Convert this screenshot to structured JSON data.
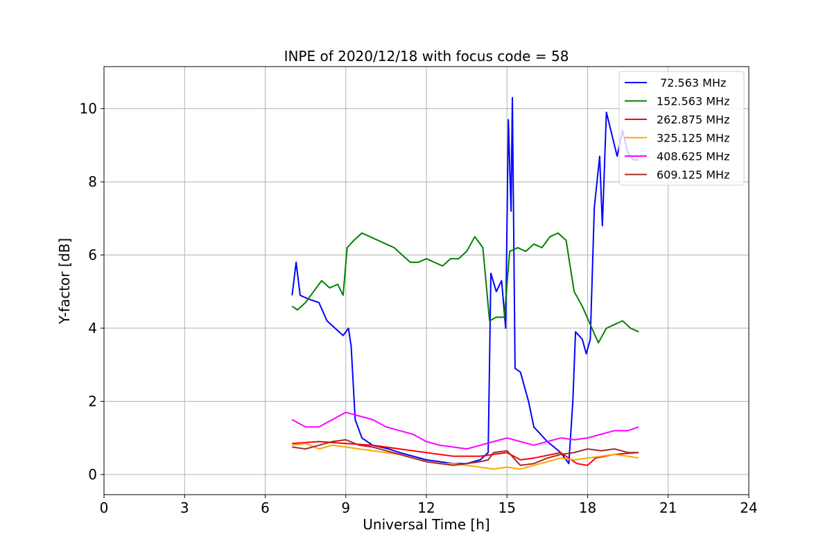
{
  "chart_data": {
    "type": "line",
    "title": "INPE of 2020/12/18 with focus code = 58",
    "xlabel": "Universal Time [h]",
    "ylabel": "Y-factor [dB]",
    "xlim": [
      0,
      24
    ],
    "ylim": [
      -0.55,
      11.15
    ],
    "xticks": [
      0,
      3,
      6,
      9,
      12,
      15,
      18,
      21,
      24
    ],
    "yticks": [
      0,
      2,
      4,
      6,
      8,
      10
    ],
    "grid": true,
    "legend_position": "top-right",
    "series": [
      {
        "name": " 72.563 MHz",
        "color": "#0000ff",
        "points": [
          [
            7.0,
            4.9
          ],
          [
            7.15,
            5.8
          ],
          [
            7.3,
            4.9
          ],
          [
            7.6,
            4.8
          ],
          [
            8.0,
            4.7
          ],
          [
            8.3,
            4.2
          ],
          [
            8.6,
            4.0
          ],
          [
            8.9,
            3.8
          ],
          [
            9.1,
            4.0
          ],
          [
            9.2,
            3.5
          ],
          [
            9.35,
            1.5
          ],
          [
            9.6,
            1.0
          ],
          [
            10.0,
            0.8
          ],
          [
            10.6,
            0.7
          ],
          [
            11.0,
            0.6
          ],
          [
            11.5,
            0.5
          ],
          [
            12.0,
            0.4
          ],
          [
            12.5,
            0.35
          ],
          [
            13.0,
            0.3
          ],
          [
            13.5,
            0.3
          ],
          [
            14.0,
            0.4
          ],
          [
            14.3,
            0.6
          ],
          [
            14.4,
            5.5
          ],
          [
            14.6,
            5.0
          ],
          [
            14.8,
            5.3
          ],
          [
            14.95,
            4.0
          ],
          [
            15.05,
            9.7
          ],
          [
            15.15,
            7.2
          ],
          [
            15.2,
            10.3
          ],
          [
            15.3,
            2.9
          ],
          [
            15.5,
            2.8
          ],
          [
            15.8,
            2.0
          ],
          [
            16.0,
            1.3
          ],
          [
            16.5,
            0.9
          ],
          [
            17.0,
            0.6
          ],
          [
            17.3,
            0.3
          ],
          [
            17.45,
            2.0
          ],
          [
            17.55,
            3.9
          ],
          [
            17.8,
            3.7
          ],
          [
            17.95,
            3.3
          ],
          [
            18.1,
            3.7
          ],
          [
            18.25,
            7.3
          ],
          [
            18.45,
            8.7
          ],
          [
            18.55,
            6.8
          ],
          [
            18.7,
            9.9
          ],
          [
            18.9,
            9.3
          ],
          [
            19.1,
            8.7
          ],
          [
            19.3,
            9.4
          ],
          [
            19.5,
            8.8
          ],
          [
            19.7,
            8.6
          ],
          [
            19.9,
            8.6
          ]
        ]
      },
      {
        "name": "152.563 MHz",
        "color": "#008000",
        "points": [
          [
            7.0,
            4.6
          ],
          [
            7.2,
            4.5
          ],
          [
            7.5,
            4.7
          ],
          [
            7.8,
            5.0
          ],
          [
            8.1,
            5.3
          ],
          [
            8.4,
            5.1
          ],
          [
            8.7,
            5.2
          ],
          [
            8.9,
            4.9
          ],
          [
            9.05,
            6.2
          ],
          [
            9.3,
            6.4
          ],
          [
            9.6,
            6.6
          ],
          [
            9.9,
            6.5
          ],
          [
            10.2,
            6.4
          ],
          [
            10.5,
            6.3
          ],
          [
            10.8,
            6.2
          ],
          [
            11.1,
            6.0
          ],
          [
            11.4,
            5.8
          ],
          [
            11.7,
            5.8
          ],
          [
            12.0,
            5.9
          ],
          [
            12.3,
            5.8
          ],
          [
            12.6,
            5.7
          ],
          [
            12.9,
            5.9
          ],
          [
            13.2,
            5.9
          ],
          [
            13.5,
            6.1
          ],
          [
            13.8,
            6.5
          ],
          [
            14.1,
            6.2
          ],
          [
            14.35,
            4.2
          ],
          [
            14.6,
            4.3
          ],
          [
            14.9,
            4.3
          ],
          [
            15.1,
            6.1
          ],
          [
            15.4,
            6.2
          ],
          [
            15.7,
            6.1
          ],
          [
            16.0,
            6.3
          ],
          [
            16.3,
            6.2
          ],
          [
            16.6,
            6.5
          ],
          [
            16.9,
            6.6
          ],
          [
            17.2,
            6.4
          ],
          [
            17.5,
            5.0
          ],
          [
            17.8,
            4.6
          ],
          [
            18.1,
            4.1
          ],
          [
            18.4,
            3.6
          ],
          [
            18.7,
            4.0
          ],
          [
            19.0,
            4.1
          ],
          [
            19.3,
            4.2
          ],
          [
            19.6,
            4.0
          ],
          [
            19.9,
            3.9
          ]
        ]
      },
      {
        "name": "262.875 MHz",
        "color": "#ff0000",
        "points": [
          [
            7.0,
            0.85
          ],
          [
            8.0,
            0.9
          ],
          [
            9.0,
            0.85
          ],
          [
            10.0,
            0.8
          ],
          [
            11.0,
            0.7
          ],
          [
            12.0,
            0.6
          ],
          [
            13.0,
            0.5
          ],
          [
            14.0,
            0.5
          ],
          [
            15.0,
            0.6
          ],
          [
            15.5,
            0.4
          ],
          [
            16.0,
            0.45
          ],
          [
            17.0,
            0.6
          ],
          [
            17.6,
            0.3
          ],
          [
            18.0,
            0.25
          ],
          [
            18.3,
            0.45
          ],
          [
            19.0,
            0.55
          ],
          [
            19.9,
            0.6
          ]
        ]
      },
      {
        "name": "325.125 MHz",
        "color": "#ffa500",
        "points": [
          [
            7.0,
            0.8
          ],
          [
            7.5,
            0.85
          ],
          [
            8.0,
            0.7
          ],
          [
            8.5,
            0.8
          ],
          [
            9.0,
            0.75
          ],
          [
            9.5,
            0.7
          ],
          [
            10.0,
            0.65
          ],
          [
            10.5,
            0.6
          ],
          [
            11.0,
            0.55
          ],
          [
            11.5,
            0.45
          ],
          [
            12.0,
            0.35
          ],
          [
            12.5,
            0.3
          ],
          [
            13.0,
            0.3
          ],
          [
            13.5,
            0.25
          ],
          [
            14.0,
            0.2
          ],
          [
            14.5,
            0.15
          ],
          [
            15.0,
            0.2
          ],
          [
            15.5,
            0.15
          ],
          [
            16.0,
            0.25
          ],
          [
            16.5,
            0.35
          ],
          [
            17.0,
            0.45
          ],
          [
            17.5,
            0.4
          ],
          [
            18.0,
            0.45
          ],
          [
            18.5,
            0.5
          ],
          [
            19.0,
            0.55
          ],
          [
            19.5,
            0.5
          ],
          [
            19.9,
            0.45
          ]
        ]
      },
      {
        "name": "408.625 MHz",
        "color": "#ff00ff",
        "points": [
          [
            7.0,
            1.5
          ],
          [
            7.5,
            1.3
          ],
          [
            8.0,
            1.3
          ],
          [
            8.5,
            1.5
          ],
          [
            9.0,
            1.7
          ],
          [
            9.5,
            1.6
          ],
          [
            10.0,
            1.5
          ],
          [
            10.5,
            1.3
          ],
          [
            11.0,
            1.2
          ],
          [
            11.5,
            1.1
          ],
          [
            12.0,
            0.9
          ],
          [
            12.5,
            0.8
          ],
          [
            13.0,
            0.75
          ],
          [
            13.5,
            0.7
          ],
          [
            14.0,
            0.8
          ],
          [
            14.5,
            0.9
          ],
          [
            15.0,
            1.0
          ],
          [
            15.5,
            0.9
          ],
          [
            16.0,
            0.8
          ],
          [
            16.5,
            0.9
          ],
          [
            17.0,
            1.0
          ],
          [
            17.5,
            0.95
          ],
          [
            18.0,
            1.0
          ],
          [
            18.5,
            1.1
          ],
          [
            19.0,
            1.2
          ],
          [
            19.5,
            1.2
          ],
          [
            19.9,
            1.3
          ]
        ]
      },
      {
        "name": "609.125 MHz",
        "color": "#a52a2a",
        "points": [
          [
            7.0,
            0.75
          ],
          [
            7.5,
            0.7
          ],
          [
            8.0,
            0.8
          ],
          [
            8.5,
            0.9
          ],
          [
            9.0,
            0.95
          ],
          [
            9.5,
            0.8
          ],
          [
            10.0,
            0.75
          ],
          [
            10.5,
            0.65
          ],
          [
            11.0,
            0.55
          ],
          [
            11.5,
            0.45
          ],
          [
            12.0,
            0.35
          ],
          [
            12.5,
            0.3
          ],
          [
            13.0,
            0.25
          ],
          [
            13.5,
            0.3
          ],
          [
            14.0,
            0.35
          ],
          [
            14.3,
            0.4
          ],
          [
            14.5,
            0.6
          ],
          [
            15.0,
            0.65
          ],
          [
            15.5,
            0.25
          ],
          [
            16.0,
            0.3
          ],
          [
            16.5,
            0.45
          ],
          [
            17.0,
            0.55
          ],
          [
            17.5,
            0.6
          ],
          [
            18.0,
            0.7
          ],
          [
            18.5,
            0.65
          ],
          [
            19.0,
            0.7
          ],
          [
            19.5,
            0.6
          ],
          [
            19.9,
            0.6
          ]
        ]
      }
    ]
  }
}
